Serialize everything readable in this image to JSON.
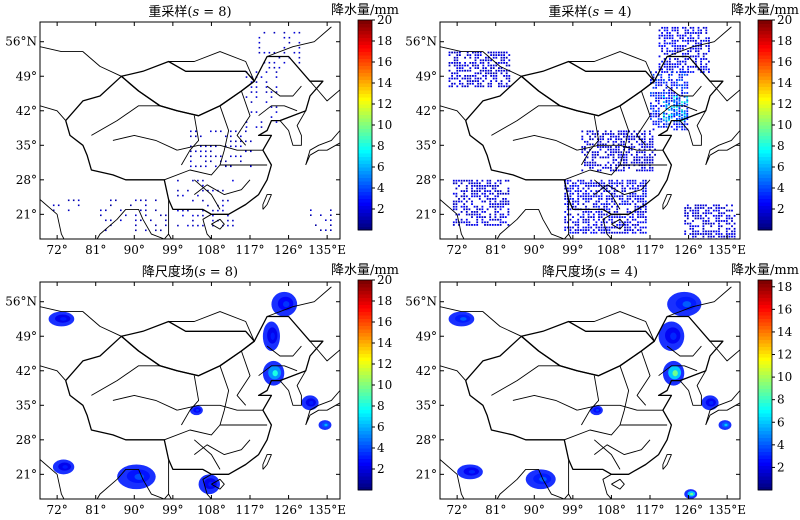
{
  "chart_data": [
    {
      "type": "heatmap",
      "title": "重采样(s = 8)",
      "title_parts": [
        "重采样(",
        "s",
        " = 8)"
      ],
      "x_ticks": [
        "72°",
        "81°",
        "90°",
        "99°",
        "108°",
        "117°",
        "126°",
        "135°E"
      ],
      "y_ticks": [
        "56°N",
        "49°",
        "42°",
        "35°",
        "28°",
        "21°"
      ],
      "x_values": [
        72,
        81,
        90,
        99,
        108,
        117,
        126,
        135
      ],
      "y_values": [
        56,
        49,
        42,
        35,
        28,
        21
      ],
      "xlim": [
        68,
        138
      ],
      "ylim": [
        16,
        60
      ],
      "colorbar": {
        "label": "降水量/mm",
        "ticks": [
          20,
          18,
          16,
          14,
          12,
          10,
          8,
          6,
          4,
          2
        ],
        "range": [
          0,
          20
        ]
      },
      "rendering": "scatter",
      "precip_regions": [
        {
          "lon": [
            119,
            129
          ],
          "lat": [
            50,
            58
          ],
          "value": 1.5
        },
        {
          "lon": [
            116,
            124
          ],
          "lat": [
            38,
            50
          ],
          "value": 1.5
        },
        {
          "lon": [
            103,
            118
          ],
          "lat": [
            30,
            38
          ],
          "value": 1.2
        },
        {
          "lon": [
            100,
            113
          ],
          "lat": [
            18,
            28
          ],
          "value": 1.5
        },
        {
          "lon": [
            71,
            78
          ],
          "lat": [
            21,
            24
          ],
          "value": 1.0
        },
        {
          "lon": [
            131,
            136
          ],
          "lat": [
            17,
            22
          ],
          "value": 1.0
        },
        {
          "lon": [
            82,
            98
          ],
          "lat": [
            17,
            24
          ],
          "value": 1.0
        }
      ]
    },
    {
      "type": "heatmap",
      "title": "重采样(s = 4)",
      "title_parts": [
        "重采样(",
        "s",
        " = 4)"
      ],
      "x_ticks": [
        "72°",
        "81°",
        "90°",
        "99°",
        "108°",
        "117°",
        "126°",
        "135°E"
      ],
      "y_ticks": [
        "56°N",
        "49°",
        "42°",
        "35°",
        "28°",
        "21°"
      ],
      "x_values": [
        72,
        81,
        90,
        99,
        108,
        117,
        126,
        135
      ],
      "y_values": [
        56,
        49,
        42,
        35,
        28,
        21
      ],
      "xlim": [
        68,
        138
      ],
      "ylim": [
        16,
        60
      ],
      "colorbar": {
        "label": "降水量/mm",
        "ticks": [
          20,
          18,
          16,
          14,
          12,
          10,
          8,
          6,
          4,
          2
        ],
        "range": [
          0,
          20
        ]
      },
      "rendering": "grid",
      "precip_regions": [
        {
          "lon": [
            119,
            131
          ],
          "lat": [
            50,
            59
          ],
          "value": 2.5
        },
        {
          "lon": [
            117,
            126
          ],
          "lat": [
            38,
            50
          ],
          "value": 3.5
        },
        {
          "lon": [
            120,
            126
          ],
          "lat": [
            40,
            45
          ],
          "value": 7.0
        },
        {
          "lon": [
            101,
            118
          ],
          "lat": [
            30,
            38
          ],
          "value": 2.0
        },
        {
          "lon": [
            97,
            116
          ],
          "lat": [
            17,
            28
          ],
          "value": 2.5
        },
        {
          "lon": [
            70,
            84
          ],
          "lat": [
            47,
            54
          ],
          "value": 2.0
        },
        {
          "lon": [
            71,
            84
          ],
          "lat": [
            19,
            28
          ],
          "value": 2.0
        },
        {
          "lon": [
            125,
            137
          ],
          "lat": [
            16,
            23
          ],
          "value": 2.0
        }
      ]
    },
    {
      "type": "heatmap",
      "title": "降尺度场(s = 8)",
      "title_parts": [
        "降尺度场(",
        "s",
        " = 8)"
      ],
      "x_ticks": [
        "72°",
        "81°",
        "90°",
        "99°",
        "108°",
        "117°",
        "126°",
        "135°E"
      ],
      "y_ticks": [
        "56°N",
        "49°",
        "42°",
        "35°",
        "28°",
        "21°"
      ],
      "x_values": [
        72,
        81,
        90,
        99,
        108,
        117,
        126,
        135
      ],
      "y_values": [
        56,
        49,
        42,
        35,
        28,
        21
      ],
      "xlim": [
        68,
        138
      ],
      "ylim": [
        16,
        60
      ],
      "colorbar": {
        "label": "降水量/mm",
        "ticks": [
          20,
          18,
          16,
          14,
          12,
          10,
          8,
          6,
          4,
          2
        ],
        "range": [
          0,
          20
        ]
      },
      "rendering": "blobs",
      "precip_regions": [
        {
          "lon": [
            122,
            128
          ],
          "lat": [
            53,
            58
          ],
          "value": 3.5
        },
        {
          "lon": [
            120,
            124
          ],
          "lat": [
            46,
            52
          ],
          "value": 3.0
        },
        {
          "lon": [
            120,
            125
          ],
          "lat": [
            39,
            44
          ],
          "value": 8.0
        },
        {
          "lon": [
            70,
            76
          ],
          "lat": [
            51,
            54
          ],
          "value": 3.0
        },
        {
          "lon": [
            103,
            106
          ],
          "lat": [
            33,
            35
          ],
          "value": 3.5
        },
        {
          "lon": [
            86,
            95
          ],
          "lat": [
            18,
            23
          ],
          "value": 4.0
        },
        {
          "lon": [
            105,
            110
          ],
          "lat": [
            17,
            21
          ],
          "value": 3.0
        },
        {
          "lon": [
            133,
            136
          ],
          "lat": [
            30,
            32
          ],
          "value": 6.0
        },
        {
          "lon": [
            129,
            133
          ],
          "lat": [
            34,
            37
          ],
          "value": 3.0
        },
        {
          "lon": [
            71,
            76
          ],
          "lat": [
            21,
            24
          ],
          "value": 3.0
        }
      ]
    },
    {
      "type": "heatmap",
      "title": "降尺度场(s = 4)",
      "title_parts": [
        "降尺度场(",
        "s",
        " = 4)"
      ],
      "x_ticks": [
        "72°",
        "81°",
        "90°",
        "99°",
        "108°",
        "117°",
        "126°",
        "135°E"
      ],
      "y_ticks": [
        "56°N",
        "49°",
        "42°",
        "35°",
        "28°",
        "21°"
      ],
      "x_values": [
        72,
        81,
        90,
        99,
        108,
        117,
        126,
        135
      ],
      "y_values": [
        56,
        49,
        42,
        35,
        28,
        21
      ],
      "xlim": [
        68,
        138
      ],
      "ylim": [
        16,
        60
      ],
      "colorbar": {
        "label": "降水量/mm",
        "ticks": [
          18,
          16,
          14,
          12,
          10,
          8,
          6,
          4,
          2
        ],
        "range": [
          0,
          18.6
        ]
      },
      "rendering": "blobs",
      "precip_regions": [
        {
          "lon": [
            121,
            129
          ],
          "lat": [
            53,
            58
          ],
          "value": 4.0
        },
        {
          "lon": [
            119,
            125
          ],
          "lat": [
            46,
            52
          ],
          "value": 3.0
        },
        {
          "lon": [
            120,
            125
          ],
          "lat": [
            39,
            44
          ],
          "value": 9.0
        },
        {
          "lon": [
            70,
            76
          ],
          "lat": [
            51,
            54
          ],
          "value": 4.0
        },
        {
          "lon": [
            103,
            106
          ],
          "lat": [
            33,
            35
          ],
          "value": 3.5
        },
        {
          "lon": [
            88,
            95
          ],
          "lat": [
            18,
            22
          ],
          "value": 4.0
        },
        {
          "lon": [
            72,
            78
          ],
          "lat": [
            20,
            23
          ],
          "value": 3.0
        },
        {
          "lon": [
            125,
            128
          ],
          "lat": [
            16,
            18
          ],
          "value": 9.0
        },
        {
          "lon": [
            133,
            136
          ],
          "lat": [
            30,
            32
          ],
          "value": 6.0
        },
        {
          "lon": [
            129,
            133
          ],
          "lat": [
            34,
            37
          ],
          "value": 3.0
        }
      ]
    }
  ]
}
